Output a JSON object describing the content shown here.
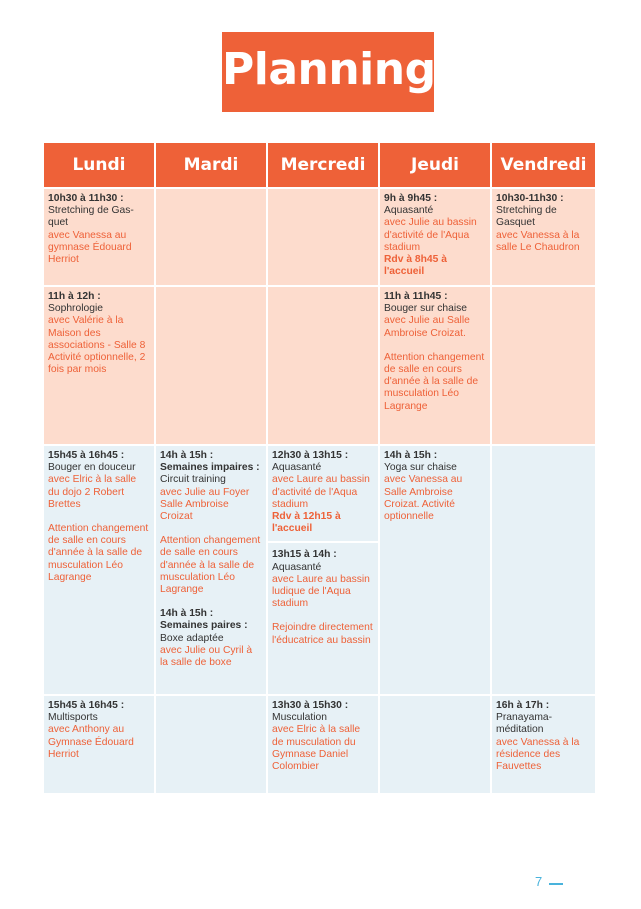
{
  "title": "Planning",
  "days": [
    "Lundi",
    "Mardi",
    "Mercredi",
    "Jeudi",
    "Vendredi"
  ],
  "row1": {
    "lundi": {
      "time": "10h30 à 11h30 :",
      "activity": "Stretching de Gas-quet",
      "info": "avec Vanessa au gymnase Édouard Herriot"
    },
    "jeudi": {
      "time": "9h à 9h45 :",
      "activity": "Aquasanté",
      "info": "avec Julie au bassin d'activité de l'Aqua stadium",
      "rdv": "Rdv à 8h45 à l'accueil"
    },
    "vendredi": {
      "time": "10h30-11h30 :",
      "activity": "Stretching de Gasquet",
      "info": "avec Vanessa à la salle Le Chaudron"
    }
  },
  "row2": {
    "lundi": {
      "time": "11h à 12h :",
      "activity": "Sophrologie",
      "info": "avec Valérie à la Maison des associations - Salle 8 Activité optionnelle, 2 fois par mois"
    },
    "jeudi": {
      "time": "11h à 11h45 :",
      "activity": "Bouger sur chaise",
      "info": "avec Julie au Salle Ambroise Croizat.",
      "note": "Attention changement de salle en cours d'année à la salle de musculation Léo Lagrange"
    }
  },
  "row3": {
    "lundi": {
      "time": "15h45 à 16h45 :",
      "activity": "Bouger en douceur",
      "info": "avec Elric à la salle du dojo 2 Robert Brettes",
      "note": "Attention changement de salle en cours d'année à la salle de musculation Léo Lagrange"
    },
    "mardi": {
      "time1": "14h à 15h :",
      "week1": "Semaines impaires :",
      "activity1": "Circuit training",
      "info1": "avec Julie au Foyer Salle Ambroise Croizat",
      "note1": "Attention changement de salle en cours d'année à la salle de musculation Léo Lagrange",
      "time2": "14h à 15h :",
      "week2": "Semaines paires :",
      "activity2": "Boxe adaptée",
      "info2": "avec Julie ou Cyril à la salle de boxe"
    },
    "mercredi": {
      "time1": "12h30 à 13h15 :",
      "activity1": "Aquasanté",
      "info1": "avec Laure au bassin d'activité de l'Aqua stadium",
      "rdv1": "Rdv à 12h15 à l'accueil",
      "time2": "13h15 à 14h :",
      "activity2": "Aquasanté",
      "info2": "avec Laure au bassin ludique de l'Aqua stadium",
      "note2": "Rejoindre directement l'éducatrice au bassin"
    },
    "jeudi": {
      "time": "14h à 15h :",
      "activity": "Yoga sur chaise",
      "info": "avec Vanessa au Salle Ambroise Croizat. Activité optionnelle"
    }
  },
  "row4": {
    "lundi": {
      "time": "15h45 à 16h45 :",
      "activity": "Multisports",
      "info": "avec Anthony au Gymnase Édouard Herriot"
    },
    "mercredi": {
      "time": "13h30 à 15h30 :",
      "activity": "Musculation",
      "info": "avec Elric à la salle de musculation du Gymnase Daniel Colombier"
    },
    "vendredi": {
      "time": "16h à 17h :",
      "activity": "Pranayama-méditation",
      "info": "avec Vanessa à la résidence des Fauvettes"
    }
  },
  "page_number": "7",
  "colors": {
    "accent": "#ee6138",
    "morning": "#fddccd",
    "afternoon": "#e7f1f6",
    "page_number": "#49b3dc"
  }
}
